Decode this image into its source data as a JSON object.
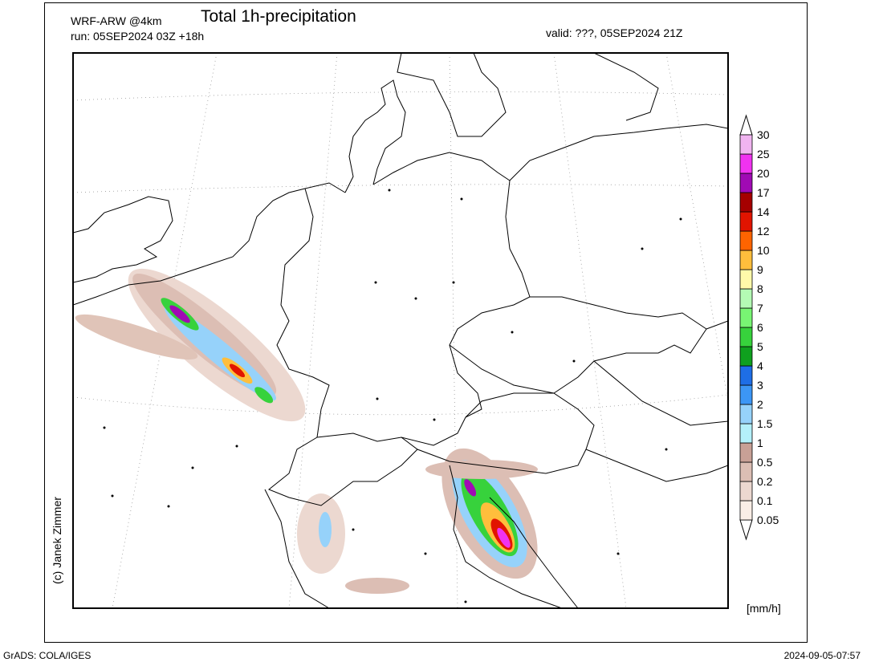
{
  "header": {
    "model": "WRF-ARW @4km",
    "title": "Total 1h-precipitation",
    "run": "run: 05SEP2024 03Z +18h",
    "valid": "valid: ???, 05SEP2024 21Z"
  },
  "credit": "(c) Janek Zimmer",
  "colorbar": {
    "levels": [
      0.05,
      0.1,
      0.2,
      0.5,
      1,
      1.5,
      2,
      3,
      4,
      5,
      6,
      7,
      8,
      9,
      10,
      12,
      14,
      17,
      20,
      25,
      30
    ],
    "colors": [
      "#faeee6",
      "#ecd8d0",
      "#dcbeb4",
      "#c8a096",
      "#b4f0fa",
      "#96d2fa",
      "#3c96f5",
      "#1e6ee6",
      "#0fa01e",
      "#37d23c",
      "#78f573",
      "#b4fab4",
      "#fffaaa",
      "#ffbe3c",
      "#ff6400",
      "#e11400",
      "#a50000",
      "#a00ab4",
      "#f032f0",
      "#f0b4f0"
    ],
    "unit": "[mm/h]"
  },
  "footer": {
    "left": "GrADS: COLA/IGES",
    "right": "2024-09-05-07:57"
  }
}
